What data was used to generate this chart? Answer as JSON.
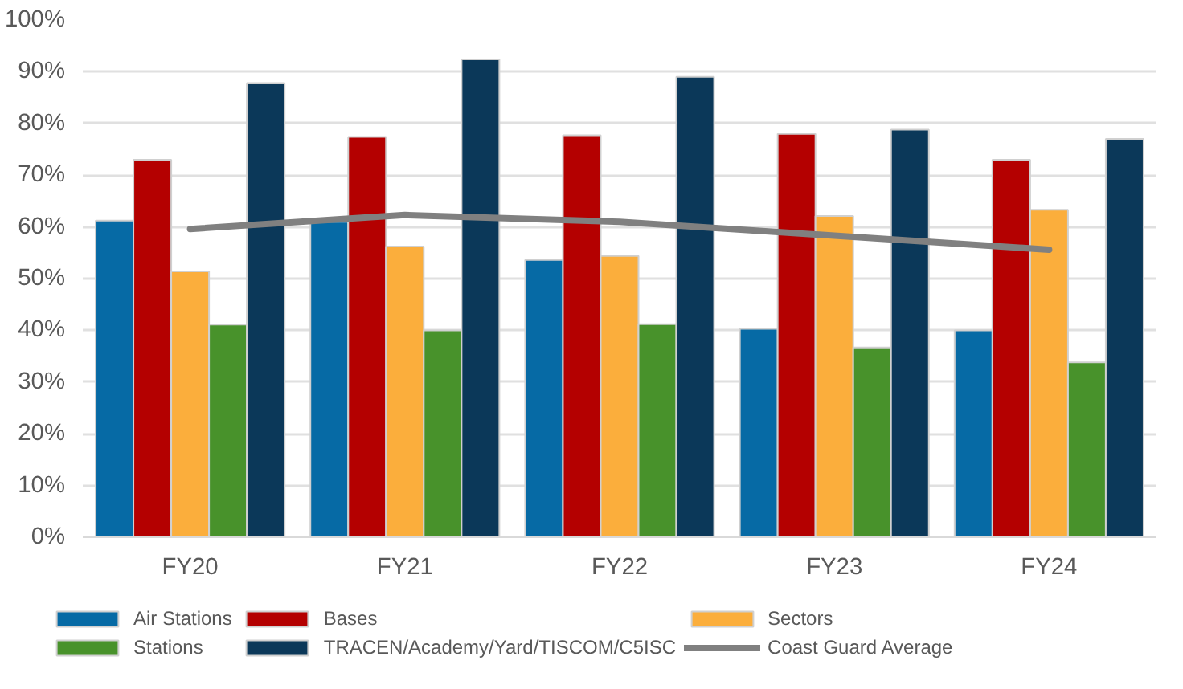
{
  "chart_data": {
    "type": "bar",
    "categories": [
      "FY20",
      "FY21",
      "FY22",
      "FY23",
      "FY24"
    ],
    "series": [
      {
        "name": "Air Stations",
        "color": "#066aa5",
        "values": [
          61.2,
          61.0,
          53.6,
          40.3,
          40.0
        ]
      },
      {
        "name": "Bases",
        "color": "#b40000",
        "values": [
          73.0,
          77.4,
          77.7,
          78.0,
          73.0
        ]
      },
      {
        "name": "Sectors",
        "color": "#fbae3c",
        "values": [
          51.4,
          56.2,
          54.4,
          62.1,
          63.3
        ]
      },
      {
        "name": "Stations",
        "color": "#48922b",
        "values": [
          41.1,
          40.0,
          41.2,
          36.7,
          33.8
        ]
      },
      {
        "name": "TRACEN/Academy/Yard/TISCOM/C5ISC",
        "color": "#0b3859",
        "values": [
          87.8,
          92.4,
          89.0,
          78.8,
          77.0
        ]
      },
      {
        "name": "Coast Guard Average",
        "color": "#808080",
        "type": "line",
        "values": [
          59.6,
          62.3,
          61.0,
          58.3,
          55.6
        ]
      }
    ],
    "ylim": [
      0,
      100
    ],
    "yticks": [
      {
        "value": 0,
        "label": "0%"
      },
      {
        "value": 10,
        "label": "10%"
      },
      {
        "value": 20,
        "label": "20%"
      },
      {
        "value": 30,
        "label": "30%"
      },
      {
        "value": 40,
        "label": "40%"
      },
      {
        "value": 50,
        "label": "50%"
      },
      {
        "value": 60,
        "label": "60%"
      },
      {
        "value": 70,
        "label": "70%"
      },
      {
        "value": 80,
        "label": "80%"
      },
      {
        "value": 90,
        "label": "90%"
      },
      {
        "value": 100,
        "label": "100%"
      }
    ],
    "grid": "y",
    "legend": "bottom"
  }
}
